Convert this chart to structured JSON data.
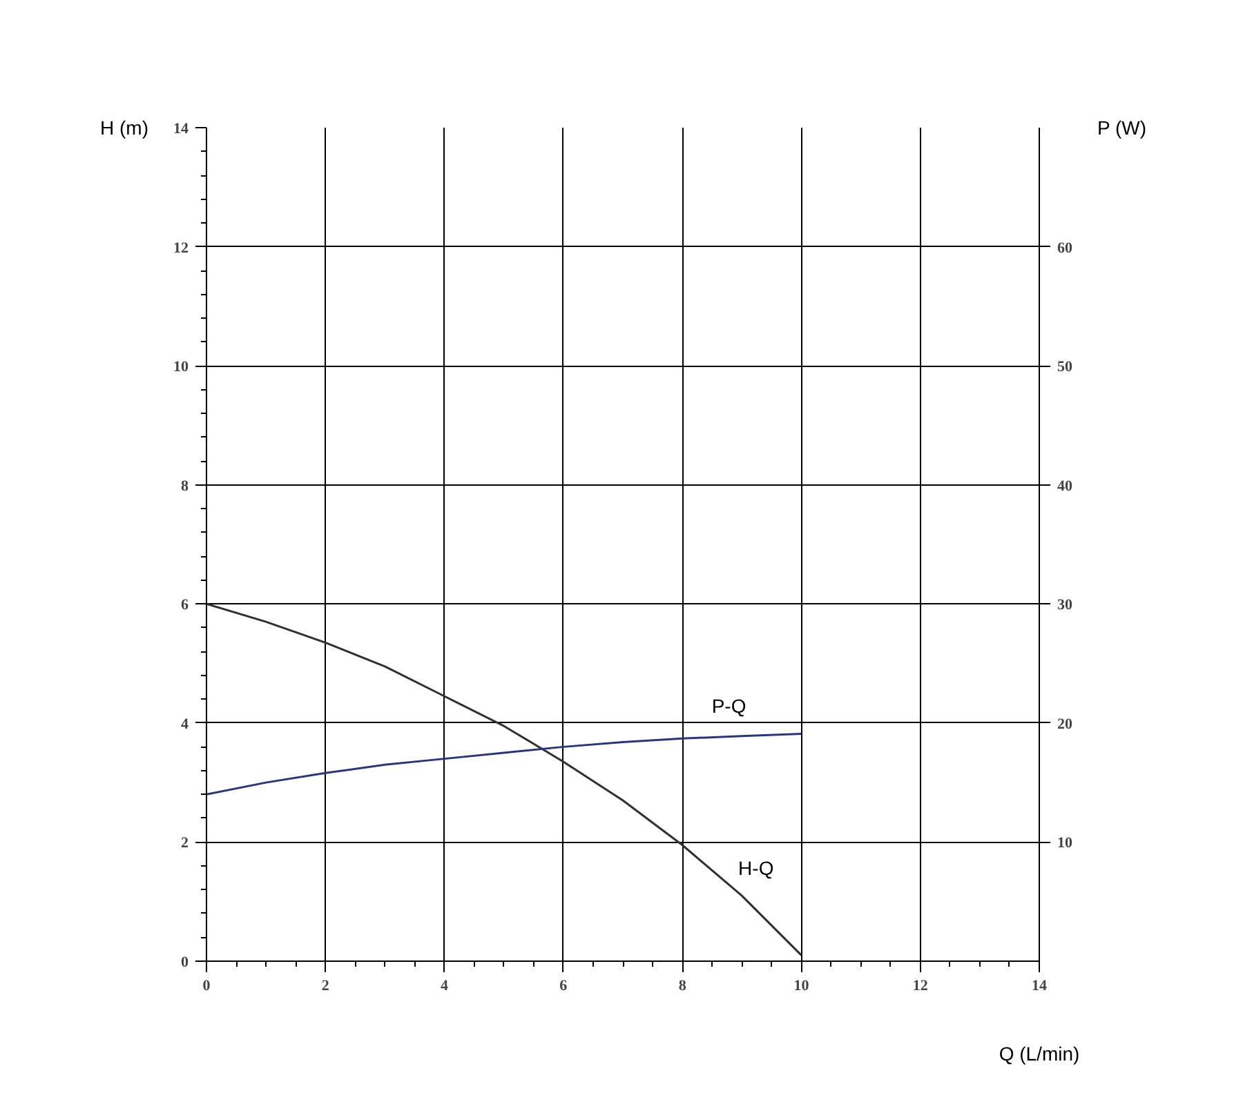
{
  "chart_data": {
    "type": "line",
    "xlabel": "Q (L/min)",
    "ylabel": "H (m)",
    "y2label": "P (W)",
    "x": [
      0,
      1,
      2,
      3,
      4,
      5,
      6,
      7,
      8,
      9,
      10
    ],
    "series": [
      {
        "name": "H-Q",
        "color": "#303030",
        "values": [
          6.0,
          5.7,
          5.35,
          4.95,
          4.45,
          3.95,
          3.35,
          2.7,
          1.95,
          1.1,
          0.1
        ]
      },
      {
        "name": "P-Q",
        "color": "#2a3580",
        "axis": "y2",
        "values": [
          14.0,
          15.0,
          15.8,
          16.5,
          17.0,
          17.5,
          18.0,
          18.4,
          18.7,
          18.9,
          19.1
        ]
      }
    ],
    "xlim": [
      0,
      14
    ],
    "xticks": [
      0,
      2,
      4,
      6,
      8,
      10,
      12,
      14
    ],
    "ylim": [
      0,
      14
    ],
    "yticks": [
      0,
      2,
      4,
      6,
      8,
      10,
      12,
      14
    ],
    "y2lim": [
      0,
      70
    ],
    "y2ticks": [
      10,
      20,
      30,
      40,
      50,
      60
    ],
    "grid": true,
    "marker": "none",
    "line_style": "solid"
  }
}
